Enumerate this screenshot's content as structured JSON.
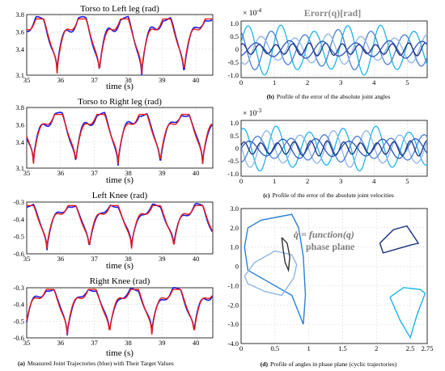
{
  "panels": [
    {
      "title": "Torso to Left leg (rad)",
      "xlabel": "time (s)",
      "xticks": [
        "35",
        "36",
        "37",
        "38",
        "39",
        "40"
      ],
      "yticks": [
        "3.8",
        "3.6",
        "3.4",
        "3.1"
      ],
      "chart_data": {
        "type": "line",
        "xlim": [
          35,
          40.5
        ],
        "ylim": [
          3.1,
          3.8
        ],
        "x_tick_values": [
          35,
          36,
          37,
          38,
          39,
          40
        ],
        "y_tick_values": [
          3.8,
          3.6,
          3.4,
          3.1
        ],
        "period": 1.25,
        "phase": 35.9,
        "base": 3.12,
        "peak": 3.75,
        "series": [
          {
            "color": "#1a1ae6",
            "values_desc": "measured"
          },
          {
            "color": "#e61a1a",
            "values_desc": "target"
          }
        ]
      }
    },
    {
      "title": "Torso to Right leg (rad)",
      "xlabel": "time (s)",
      "xticks": [
        "35",
        "36",
        "37",
        "38",
        "39",
        "40"
      ],
      "yticks": [
        "3.8",
        "3.6",
        "3.4",
        "3.1"
      ],
      "chart_data": {
        "type": "line",
        "xlim": [
          35,
          40.5
        ],
        "ylim": [
          3.1,
          3.8
        ],
        "x_tick_values": [
          35,
          36,
          37,
          38,
          39,
          40
        ],
        "y_tick_values": [
          3.8,
          3.6,
          3.4,
          3.1
        ],
        "period": 1.25,
        "phase": 36.45,
        "base": 3.15,
        "peak": 3.72,
        "series": [
          {
            "color": "#1a1ae6",
            "values_desc": "measured"
          },
          {
            "color": "#e61a1a",
            "values_desc": "target"
          }
        ]
      }
    },
    {
      "title": "Left Knee (rad)",
      "xlabel": "time (s)",
      "xticks": [
        "35",
        "36",
        "37",
        "38",
        "39",
        "40"
      ],
      "yticks": [
        "-0.3",
        "-0.4",
        "-0.5",
        "-0.6"
      ],
      "chart_data": {
        "type": "line",
        "xlim": [
          35,
          40.5
        ],
        "ylim": [
          -0.6,
          -0.3
        ],
        "x_tick_values": [
          35,
          36,
          37,
          38,
          39,
          40
        ],
        "y_tick_values": [
          -0.3,
          -0.4,
          -0.5,
          -0.6
        ],
        "period": 1.25,
        "phase": 35.6,
        "base": -0.57,
        "peak": -0.32,
        "series": [
          {
            "color": "#1a1ae6",
            "values_desc": "measured"
          },
          {
            "color": "#e61a1a",
            "values_desc": "target"
          }
        ]
      }
    },
    {
      "title": "Right Knee (rad)",
      "xlabel": "time (s)",
      "xticks": [
        "35",
        "36",
        "37",
        "38",
        "39",
        "40"
      ],
      "yticks": [
        "-0.3",
        "-0.4",
        "-0.5",
        "-0.6"
      ],
      "chart_data": {
        "type": "line",
        "xlim": [
          35,
          40.5
        ],
        "ylim": [
          -0.6,
          -0.3
        ],
        "x_tick_values": [
          35,
          36,
          37,
          38,
          39,
          40
        ],
        "y_tick_values": [
          -0.3,
          -0.4,
          -0.5,
          -0.6
        ],
        "period": 1.25,
        "phase": 36.2,
        "base": -0.58,
        "peak": -0.31,
        "series": [
          {
            "color": "#1a1ae6",
            "values_desc": "measured"
          },
          {
            "color": "#e61a1a",
            "values_desc": "target"
          }
        ]
      }
    },
    {
      "title": "Erorr(q)[rad]",
      "exponent": "× 10",
      "exponent_sup": "-4",
      "xticks": [
        "0",
        "1",
        "2",
        "3",
        "4",
        "5"
      ],
      "yticks": [
        "1.0",
        "0.5",
        "0",
        "-0.5",
        "-1.0"
      ],
      "chart_data": {
        "type": "line",
        "xlim": [
          0,
          5.6
        ],
        "ylim": [
          -1.1,
          1.1
        ],
        "x_tick_values": [
          0,
          1,
          2,
          3,
          4,
          5
        ],
        "y_tick_values": [
          1.0,
          0.5,
          0,
          -0.5,
          -1.0
        ],
        "series": [
          {
            "color": "#1bb5e8",
            "amplitude": 1.0,
            "freq": 1.2,
            "phase": 0.3
          },
          {
            "color": "#4a7fd4",
            "amplitude": 0.8,
            "freq": 1.2,
            "phase": 2.1
          },
          {
            "color": "#8fb5e8",
            "amplitude": 0.6,
            "freq": 1.2,
            "phase": 4.0
          },
          {
            "color": "#17307a",
            "amplitude": 0.25,
            "freq": 2.4,
            "phase": 1.0
          },
          {
            "color": "#2a56b8",
            "amplitude": 0.35,
            "freq": 1.2,
            "phase": 5.0
          }
        ]
      }
    },
    {
      "title": "",
      "exponent": "× 10",
      "exponent_sup": "-3",
      "xticks": [
        "0",
        "1",
        "2",
        "3",
        "4",
        "5"
      ],
      "yticks": [
        "1.0",
        "0.5",
        "0",
        "-0.5",
        "-1.0"
      ],
      "chart_data": {
        "type": "line",
        "xlim": [
          0,
          5.6
        ],
        "ylim": [
          -1.1,
          1.1
        ],
        "x_tick_values": [
          0,
          1,
          2,
          3,
          4,
          5
        ],
        "y_tick_values": [
          1.0,
          0.5,
          0,
          -0.5,
          -1.0
        ],
        "series": [
          {
            "color": "#1bb5e8",
            "amplitude": 0.9,
            "freq": 1.2,
            "phase": 1.2
          },
          {
            "color": "#8fb5e8",
            "amplitude": 0.75,
            "freq": 1.2,
            "phase": 3.0
          },
          {
            "color": "#4a7fd4",
            "amplitude": 0.55,
            "freq": 1.2,
            "phase": 4.7
          },
          {
            "color": "#17307a",
            "amplitude": 0.3,
            "freq": 2.4,
            "phase": 0.4
          },
          {
            "color": "#2a56b8",
            "amplitude": 0.4,
            "freq": 1.2,
            "phase": 0.0
          }
        ]
      }
    },
    {
      "title": "",
      "annotation_line1": "q̇ = function(q)",
      "annotation_line2": "phase plane",
      "xticks": [
        "0",
        "0.5",
        "1",
        "1.5",
        "2",
        "2.5",
        "2.75"
      ],
      "yticks": [
        "3.0",
        "2.0",
        "1.0",
        "0",
        "-1.0",
        "-2.0",
        "-3.0",
        "-4.0"
      ],
      "chart_data": {
        "type": "scatter",
        "xlim": [
          0,
          2.75
        ],
        "ylim": [
          -4.0,
          3.0
        ],
        "x_tick_values": [
          0,
          0.5,
          1,
          1.5,
          2,
          2.5,
          2.75
        ],
        "y_tick_values": [
          3.0,
          2.0,
          1.0,
          0,
          -1.0,
          -2.0,
          -3.0,
          -4.0
        ],
        "series": [
          {
            "color": "#2a7fd4",
            "points": [
              [
                0.05,
                1.0
              ],
              [
                0.1,
                2.0
              ],
              [
                0.3,
                2.4
              ],
              [
                0.6,
                2.6
              ],
              [
                0.75,
                2.7
              ],
              [
                0.85,
                2.0
              ],
              [
                0.92,
                0.5
              ],
              [
                0.95,
                -1.5
              ],
              [
                0.92,
                -3.0
              ],
              [
                0.75,
                -1.5
              ],
              [
                0.4,
                -0.8
              ],
              [
                0.1,
                -0.2
              ],
              [
                0.05,
                1.0
              ]
            ]
          },
          {
            "color": "#8fb5e8",
            "points": [
              [
                0.05,
                -0.5
              ],
              [
                0.2,
                0.2
              ],
              [
                0.5,
                0.8
              ],
              [
                0.75,
                0.6
              ],
              [
                0.82,
                0.1
              ],
              [
                0.78,
                -0.6
              ],
              [
                0.6,
                -1.5
              ],
              [
                0.35,
                -1.3
              ],
              [
                0.1,
                -0.9
              ],
              [
                0.05,
                -0.5
              ]
            ]
          },
          {
            "color": "#333333",
            "points": [
              [
                0.6,
                1.5
              ],
              [
                0.68,
                1.2
              ],
              [
                0.72,
                0.5
              ],
              [
                0.7,
                -0.2
              ],
              [
                0.65,
                0.2
              ],
              [
                0.62,
                0.9
              ],
              [
                0.6,
                1.5
              ]
            ]
          },
          {
            "color": "#17307a",
            "points": [
              [
                2.05,
                1.2
              ],
              [
                2.25,
                1.9
              ],
              [
                2.45,
                2.1
              ],
              [
                2.62,
                1.2
              ],
              [
                2.5,
                1.1
              ],
              [
                2.3,
                0.9
              ],
              [
                2.1,
                0.7
              ],
              [
                2.05,
                1.2
              ]
            ]
          },
          {
            "color": "#1bb5e8",
            "points": [
              [
                2.2,
                -1.6
              ],
              [
                2.4,
                -1.1
              ],
              [
                2.65,
                -1.2
              ],
              [
                2.72,
                -1.4
              ],
              [
                2.6,
                -2.5
              ],
              [
                2.5,
                -3.7
              ],
              [
                2.35,
                -2.8
              ],
              [
                2.2,
                -1.6
              ]
            ]
          }
        ]
      }
    }
  ],
  "captions": {
    "a_label": "(a)",
    "a_text": "Measured Joint Trajectories (blue) with Their Target Values",
    "b_label": "(b)",
    "b_text": "Profile of the error of the absolute joint angles",
    "c_label": "(c)",
    "c_text": "Profile of the error of the absolute joint velocities",
    "d_label": "(d)",
    "d_text": "Profile of angles in phase plane (cyclic trajectories)"
  }
}
